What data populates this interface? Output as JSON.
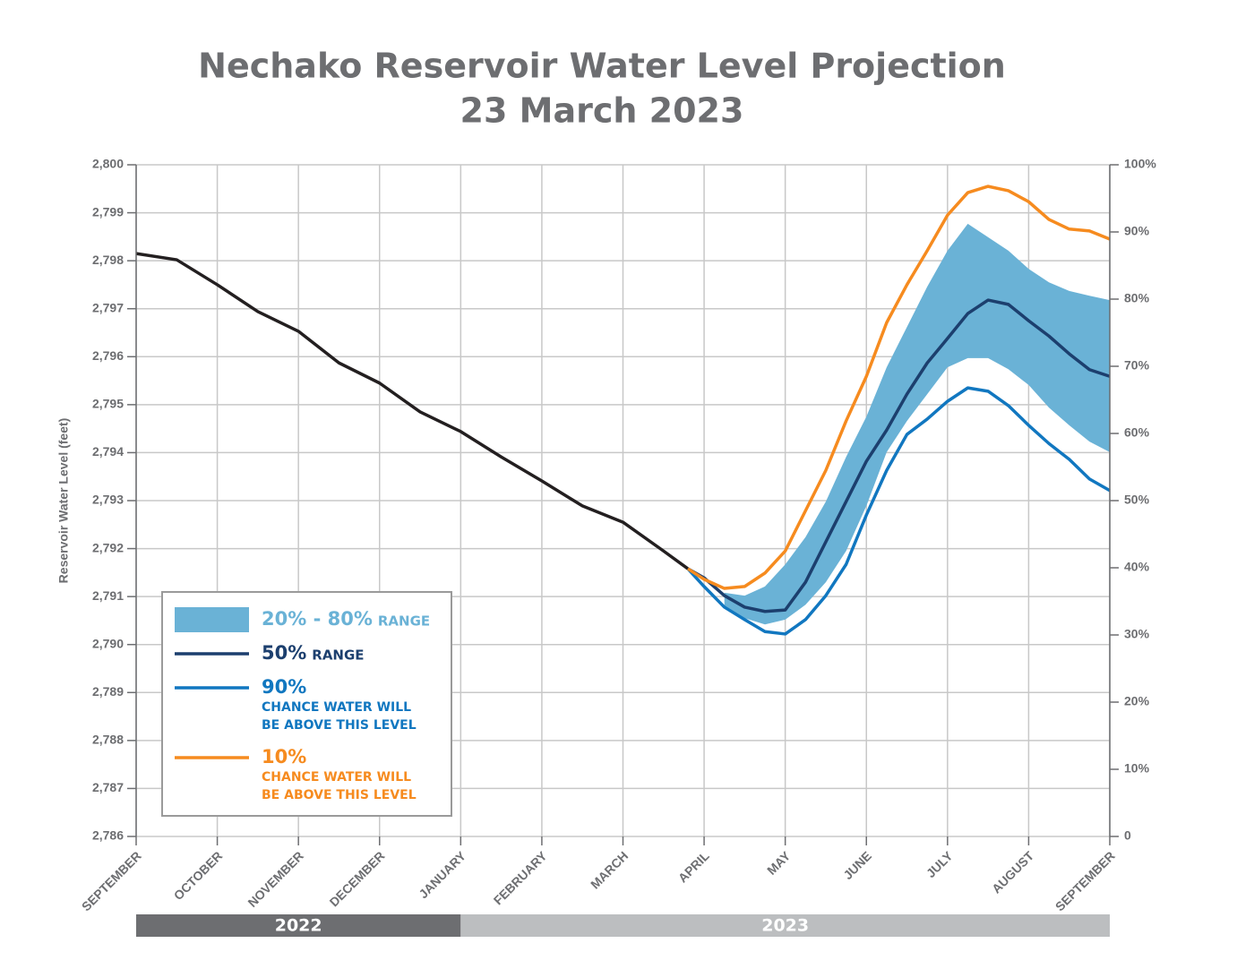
{
  "chart_data": {
    "type": "line",
    "title": "Nechako Reservoir Water Level Projection",
    "subtitle": "23 March 2023",
    "y_label": "Reservoir Water Level (feet)",
    "xlim": [
      0,
      12
    ],
    "xticks": [
      {
        "value": 0,
        "label": "SEPTEMBER"
      },
      {
        "value": 1,
        "label": "OCTOBER"
      },
      {
        "value": 2,
        "label": "NOVEMBER"
      },
      {
        "value": 3,
        "label": "DECEMBER"
      },
      {
        "value": 4,
        "label": "JANUARY"
      },
      {
        "value": 5,
        "label": "FEBRUARY"
      },
      {
        "value": 6,
        "label": "MARCH"
      },
      {
        "value": 7,
        "label": "APRIL"
      },
      {
        "value": 8,
        "label": "MAY"
      },
      {
        "value": 9,
        "label": "JUNE"
      },
      {
        "value": 10,
        "label": "JULY"
      },
      {
        "value": 11,
        "label": "AUGUST"
      },
      {
        "value": 12,
        "label": "SEPTEMBER"
      }
    ],
    "ylim": [
      2786,
      2800
    ],
    "yticks": [
      {
        "value": 2786,
        "label": "2,786"
      },
      {
        "value": 2787,
        "label": "2,787"
      },
      {
        "value": 2788,
        "label": "2,788"
      },
      {
        "value": 2789,
        "label": "2,789"
      },
      {
        "value": 2790,
        "label": "2,790"
      },
      {
        "value": 2791,
        "label": "2,791"
      },
      {
        "value": 2792,
        "label": "2,792"
      },
      {
        "value": 2793,
        "label": "2,793"
      },
      {
        "value": 2794,
        "label": "2,794"
      },
      {
        "value": 2795,
        "label": "2,795"
      },
      {
        "value": 2796,
        "label": "2,796"
      },
      {
        "value": 2797,
        "label": "2,797"
      },
      {
        "value": 2798,
        "label": "2,798"
      },
      {
        "value": 2799,
        "label": "2,799"
      },
      {
        "value": 2800,
        "label": "2,800"
      }
    ],
    "y2lim": [
      0,
      100
    ],
    "y2ticks": [
      0,
      {
        "value": 10,
        "label": "10%"
      },
      {
        "value": 20,
        "label": "20%"
      },
      {
        "value": 30,
        "label": "30%"
      },
      {
        "value": 40,
        "label": "40%"
      },
      {
        "value": 50,
        "label": "50%"
      },
      {
        "value": 60,
        "label": "60%"
      },
      {
        "value": 70,
        "label": "70%"
      },
      {
        "value": 80,
        "label": "80%"
      },
      {
        "value": 90,
        "label": "90%"
      },
      {
        "value": 100,
        "label": "100%"
      }
    ],
    "grid": true,
    "periods": [
      {
        "label": "2022",
        "start": 0,
        "end": 4,
        "color": "#6d6e71"
      },
      {
        "label": "2023",
        "start": 4,
        "end": 12,
        "color": "#bcbec0"
      }
    ],
    "series": [
      {
        "type": "line",
        "color": "#231f20",
        "x": [
          0,
          0.5,
          1,
          1.5,
          2,
          2.5,
          3,
          3.5,
          4,
          4.5,
          5,
          5.5,
          6,
          6.5,
          6.8
        ],
        "values": [
          2798.15,
          2798.02,
          2797.5,
          2796.94,
          2796.53,
          2795.87,
          2795.45,
          2794.85,
          2794.44,
          2793.91,
          2793.41,
          2792.89,
          2792.55,
          2791.95,
          2791.58
        ]
      },
      {
        "type": "band",
        "name": "20% - 80%",
        "suffix": "RANGE",
        "color": "#6ab2d6",
        "x": [
          7.25,
          7.5,
          7.75,
          8,
          8.25,
          8.5,
          8.75,
          9,
          9.25,
          9.5,
          9.75,
          10,
          10.25,
          10.5,
          10.75,
          11,
          11.25,
          11.5,
          11.75,
          12
        ],
        "upper": [
          2791.08,
          2791.02,
          2791.21,
          2791.67,
          2792.24,
          2792.98,
          2793.91,
          2794.75,
          2795.78,
          2796.62,
          2797.46,
          2798.21,
          2798.77,
          2798.49,
          2798.21,
          2797.83,
          2797.55,
          2797.37,
          2797.27,
          2797.18
        ],
        "lower": [
          2790.78,
          2790.55,
          2790.42,
          2790.52,
          2790.83,
          2791.3,
          2791.95,
          2792.89,
          2794.01,
          2794.66,
          2795.22,
          2795.78,
          2795.97,
          2795.97,
          2795.74,
          2795.41,
          2794.94,
          2794.57,
          2794.23,
          2794.01
        ]
      },
      {
        "type": "line",
        "name": "50%",
        "suffix": "RANGE",
        "color": "#1c3f6e",
        "x": [
          6.8,
          7,
          7.25,
          7.5,
          7.75,
          8,
          8.25,
          8.5,
          8.75,
          9,
          9.25,
          9.5,
          9.75,
          10,
          10.25,
          10.5,
          10.75,
          11,
          11.25,
          11.5,
          11.75,
          12
        ],
        "values": [
          2791.58,
          2791.39,
          2791.02,
          2790.78,
          2790.69,
          2790.72,
          2791.3,
          2792.14,
          2792.98,
          2793.82,
          2794.47,
          2795.22,
          2795.87,
          2796.38,
          2796.9,
          2797.18,
          2797.09,
          2796.75,
          2796.43,
          2796.06,
          2795.73,
          2795.59
        ]
      },
      {
        "type": "line",
        "name": "90%",
        "description": [
          "CHANCE WATER WILL",
          "BE ABOVE THIS LEVEL"
        ],
        "color": "#1177c0",
        "x": [
          6.8,
          7,
          7.25,
          7.5,
          7.75,
          8,
          8.25,
          8.5,
          8.75,
          9,
          9.25,
          9.5,
          9.75,
          10,
          10.25,
          10.5,
          10.75,
          11,
          11.25,
          11.5,
          11.75,
          12
        ],
        "values": [
          2791.58,
          2791.21,
          2790.78,
          2790.52,
          2790.27,
          2790.22,
          2790.52,
          2791.02,
          2791.67,
          2792.7,
          2793.63,
          2794.38,
          2794.7,
          2795.07,
          2795.35,
          2795.28,
          2794.98,
          2794.57,
          2794.19,
          2793.86,
          2793.45,
          2793.21
        ]
      },
      {
        "type": "line",
        "name": "10%",
        "description": [
          "CHANCE WATER WILL",
          "BE ABOVE THIS LEVEL"
        ],
        "color": "#f68b1f",
        "x": [
          6.8,
          7,
          7.25,
          7.5,
          7.75,
          8,
          8.25,
          8.5,
          8.75,
          9,
          9.25,
          9.5,
          9.75,
          10,
          10.25,
          10.5,
          10.75,
          11,
          11.25,
          11.5,
          11.75,
          12
        ],
        "values": [
          2791.58,
          2791.36,
          2791.17,
          2791.21,
          2791.49,
          2791.95,
          2792.79,
          2793.63,
          2794.66,
          2795.59,
          2796.71,
          2797.5,
          2798.21,
          2798.95,
          2799.42,
          2799.55,
          2799.46,
          2799.23,
          2798.86,
          2798.66,
          2798.62,
          2798.45
        ]
      }
    ]
  }
}
